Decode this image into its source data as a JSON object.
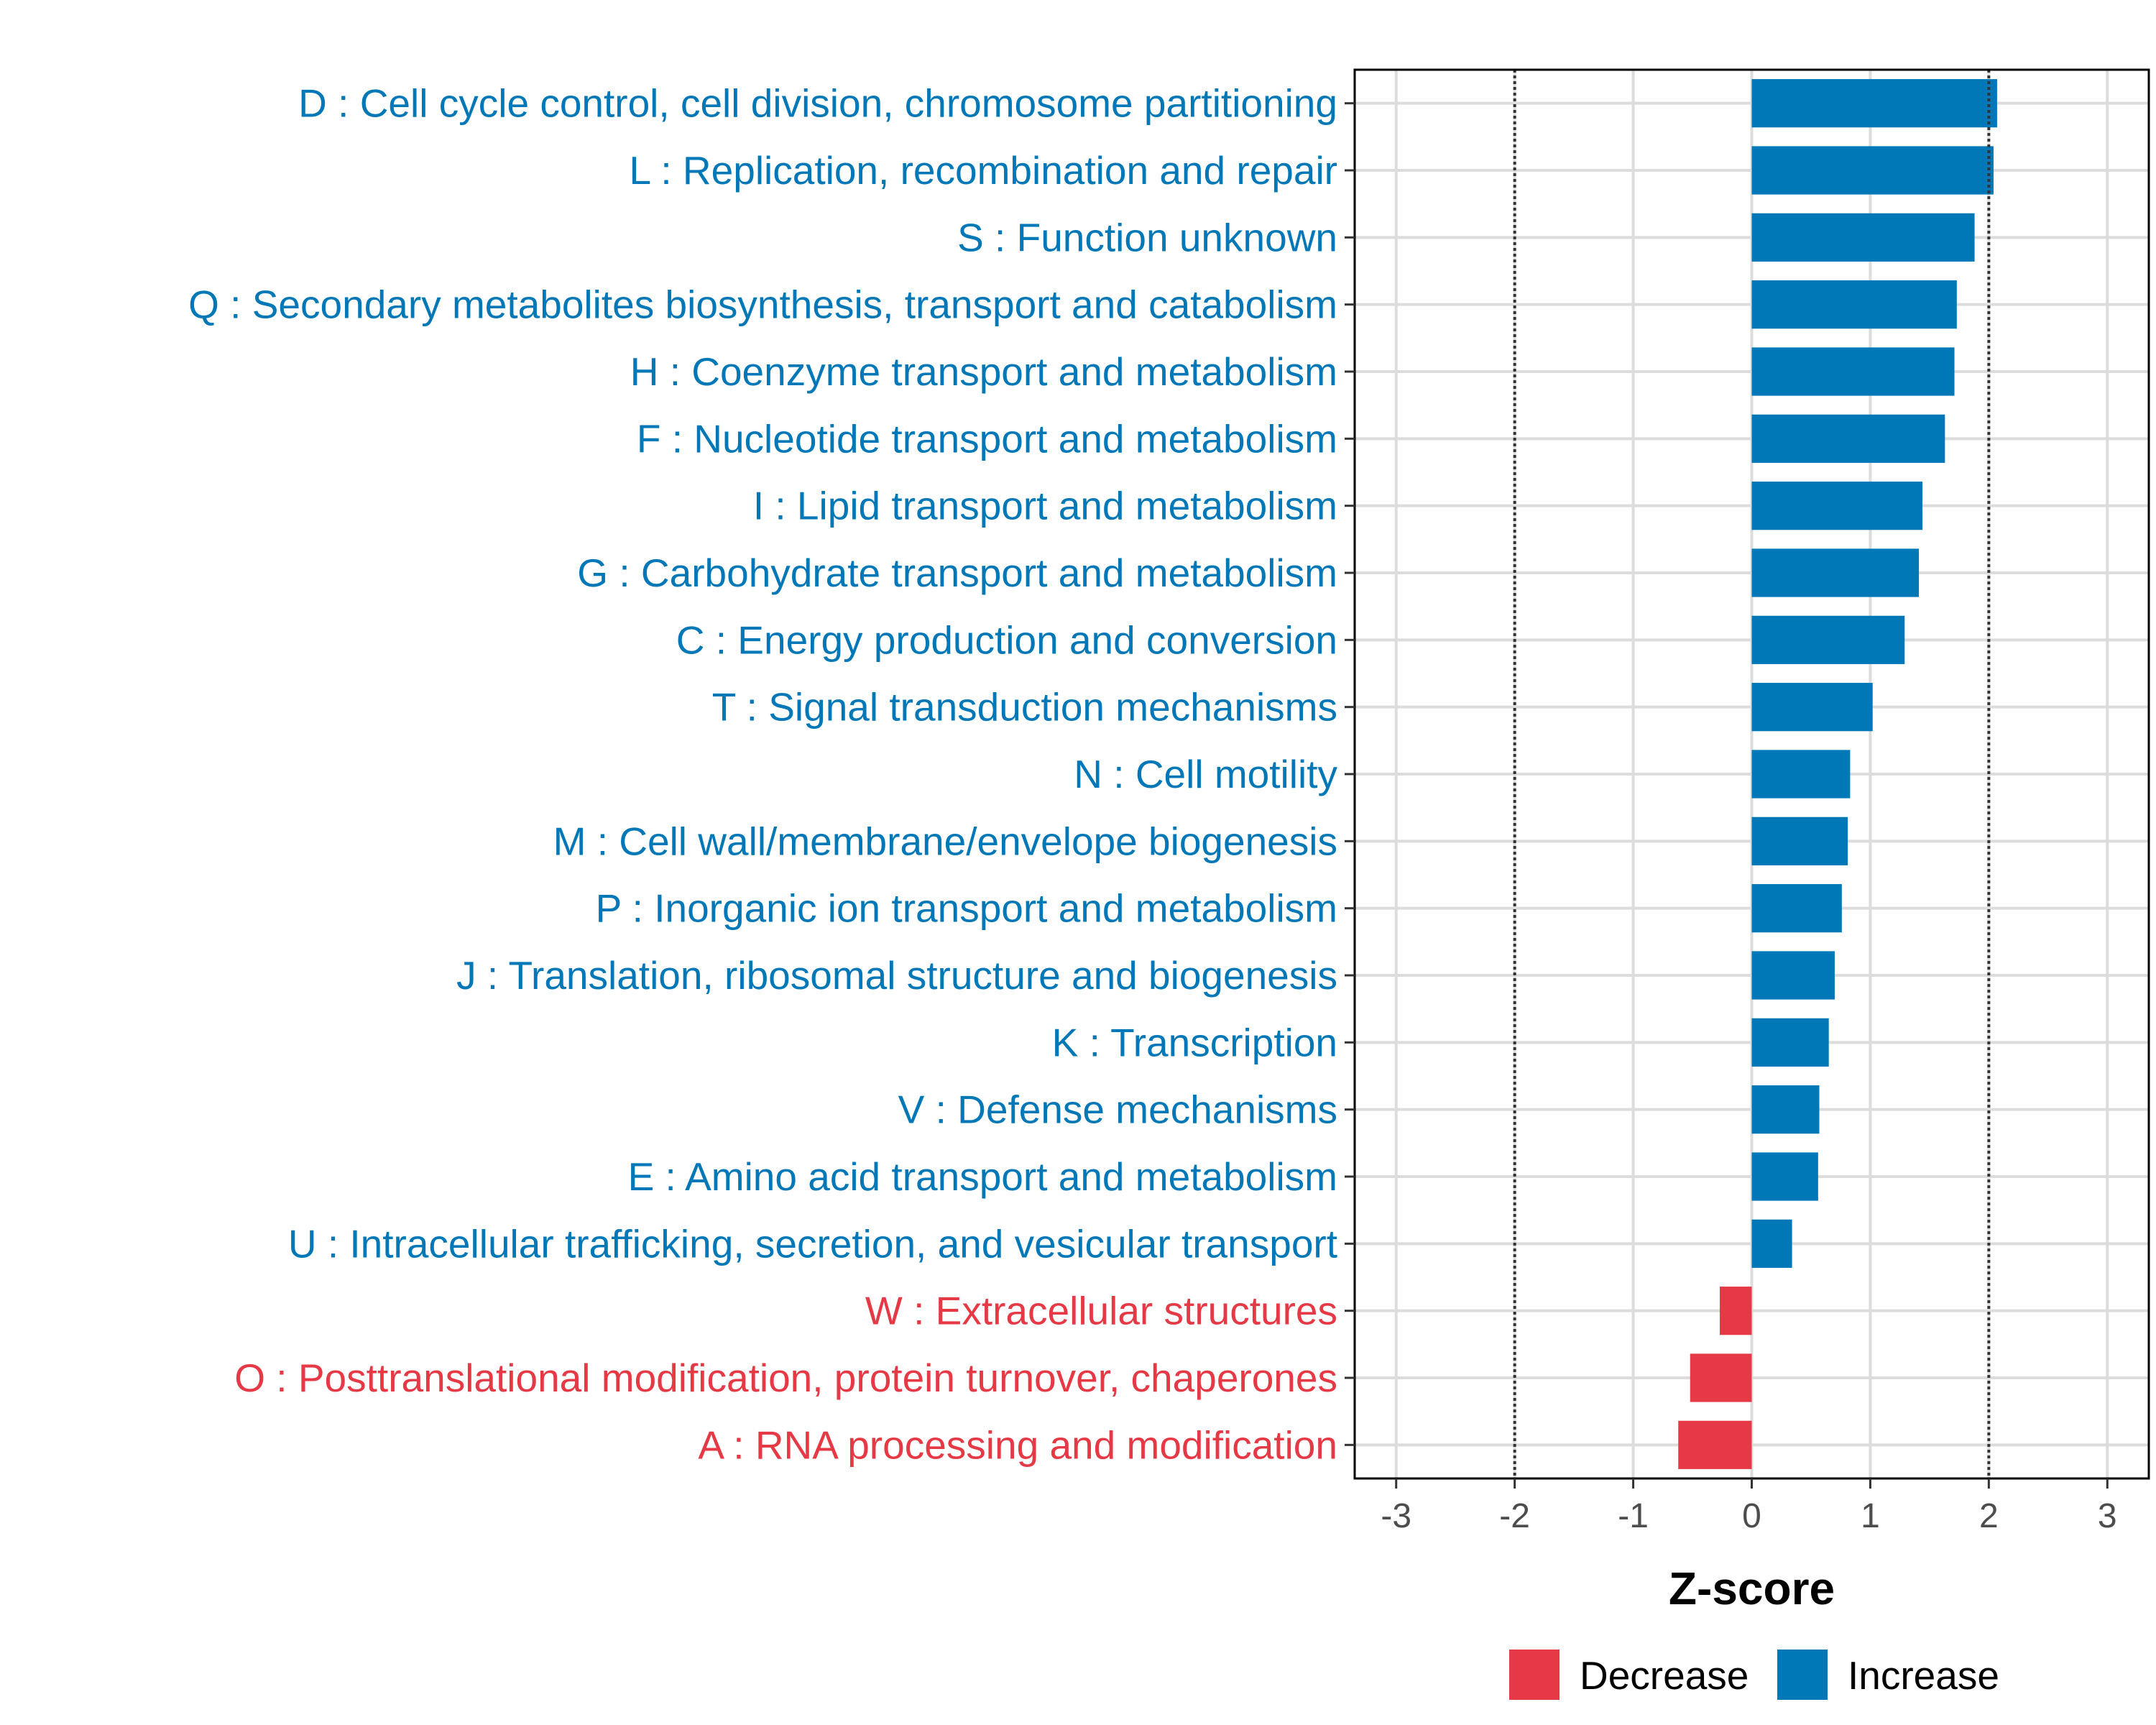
{
  "chart_data": {
    "type": "bar",
    "orientation": "horizontal",
    "xlabel": "Z-score",
    "ylabel": "",
    "xlim": [
      -3.35,
      3.35
    ],
    "xticks": [
      -3,
      -2,
      -1,
      0,
      1,
      2,
      3
    ],
    "xtick_labels": [
      "-3",
      "-2",
      "-1",
      "0",
      "1",
      "2",
      "3"
    ],
    "threshold_lines": [
      -2,
      2
    ],
    "grid": true,
    "legend_position": "bottom",
    "colors": {
      "Increase": "#0077b6",
      "Decrease": "#e63946"
    },
    "legend": [
      {
        "name": "Decrease",
        "color": "#e63946"
      },
      {
        "name": "Increase",
        "color": "#0077b6"
      }
    ],
    "bars": [
      {
        "label": "D : Cell cycle control, cell division, chromosome partitioning",
        "value": 2.07,
        "group": "Increase"
      },
      {
        "label": "L : Replication, recombination and repair",
        "value": 2.04,
        "group": "Increase"
      },
      {
        "label": "S : Function unknown",
        "value": 1.88,
        "group": "Increase"
      },
      {
        "label": "Q : Secondary metabolites biosynthesis, transport and catabolism",
        "value": 1.73,
        "group": "Increase"
      },
      {
        "label": "H : Coenzyme transport and metabolism",
        "value": 1.71,
        "group": "Increase"
      },
      {
        "label": "F : Nucleotide transport and metabolism",
        "value": 1.63,
        "group": "Increase"
      },
      {
        "label": "I : Lipid transport and metabolism",
        "value": 1.44,
        "group": "Increase"
      },
      {
        "label": "G : Carbohydrate transport and metabolism",
        "value": 1.41,
        "group": "Increase"
      },
      {
        "label": "C : Energy production and conversion",
        "value": 1.29,
        "group": "Increase"
      },
      {
        "label": "T : Signal transduction mechanisms",
        "value": 1.02,
        "group": "Increase"
      },
      {
        "label": "N : Cell motility",
        "value": 0.83,
        "group": "Increase"
      },
      {
        "label": "M : Cell wall/membrane/envelope biogenesis",
        "value": 0.81,
        "group": "Increase"
      },
      {
        "label": "P : Inorganic ion transport and metabolism",
        "value": 0.76,
        "group": "Increase"
      },
      {
        "label": "J : Translation, ribosomal structure and biogenesis",
        "value": 0.7,
        "group": "Increase"
      },
      {
        "label": "K : Transcription",
        "value": 0.65,
        "group": "Increase"
      },
      {
        "label": "V : Defense mechanisms",
        "value": 0.57,
        "group": "Increase"
      },
      {
        "label": "E : Amino acid transport and metabolism",
        "value": 0.56,
        "group": "Increase"
      },
      {
        "label": "U : Intracellular trafficking, secretion, and vesicular transport",
        "value": 0.34,
        "group": "Increase"
      },
      {
        "label": "W : Extracellular structures",
        "value": -0.27,
        "group": "Decrease"
      },
      {
        "label": "O : Posttranslational modification, protein turnover, chaperones",
        "value": -0.52,
        "group": "Decrease"
      },
      {
        "label": "A : RNA processing and modification",
        "value": -0.62,
        "group": "Decrease"
      }
    ]
  }
}
